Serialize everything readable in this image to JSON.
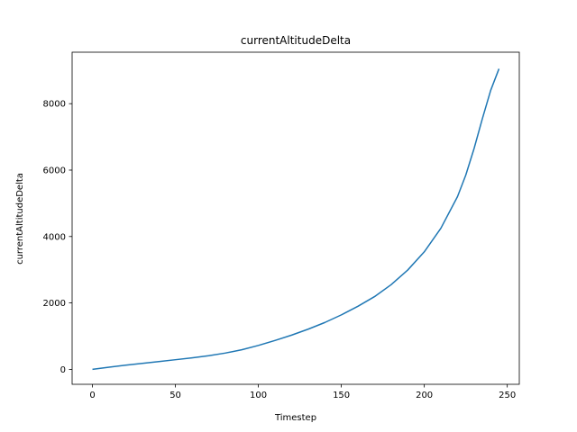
{
  "chart_data": {
    "type": "line",
    "title": "currentAltitudeDelta",
    "xlabel": "Timestep",
    "ylabel": "currentAltitudeDelta",
    "xlim": [
      -12.25,
      257.25
    ],
    "ylim": [
      -450,
      9550
    ],
    "xticks": [
      0,
      50,
      100,
      150,
      200,
      250
    ],
    "yticks": [
      0,
      2000,
      4000,
      6000,
      8000
    ],
    "grid": false,
    "series": [
      {
        "color": "#1f77b4",
        "x": [
          0,
          10,
          20,
          30,
          40,
          50,
          60,
          70,
          80,
          90,
          100,
          110,
          120,
          130,
          140,
          150,
          160,
          170,
          180,
          190,
          200,
          210,
          220,
          225,
          230,
          235,
          240,
          245
        ],
        "y": [
          0,
          65,
          125,
          180,
          235,
          290,
          345,
          410,
          490,
          590,
          720,
          870,
          1030,
          1210,
          1410,
          1640,
          1900,
          2190,
          2550,
          2990,
          3540,
          4250,
          5200,
          5850,
          6650,
          7550,
          8400,
          9050
        ]
      }
    ]
  }
}
